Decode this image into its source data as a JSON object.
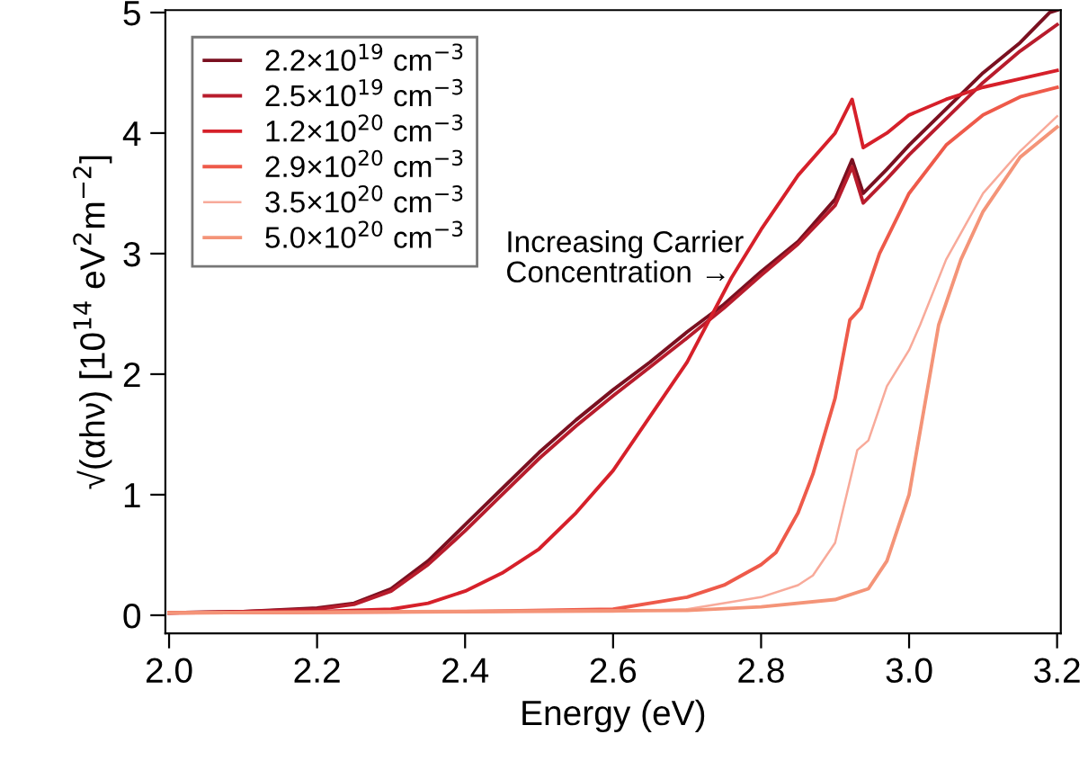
{
  "chart_data": {
    "type": "line",
    "xlabel": "Energy (eV)",
    "ylabel": "√(αhν) [10$^{14}$ eV$^{2}$m$^{−2}$]",
    "xlim": [
      1.995,
      3.205
    ],
    "ylim": [
      -0.15,
      5.02
    ],
    "xticks": [
      {
        "value": 2.0,
        "label": "2.0"
      },
      {
        "value": 2.2,
        "label": "2.2"
      },
      {
        "value": 2.4,
        "label": "2.4"
      },
      {
        "value": 2.6,
        "label": "2.6"
      },
      {
        "value": 2.8,
        "label": "2.8"
      },
      {
        "value": 3.0,
        "label": "3.0"
      },
      {
        "value": 3.2,
        "label": "3.2"
      }
    ],
    "yticks": [
      0,
      1,
      2,
      3,
      4,
      5
    ],
    "grid": false,
    "legend": "top left",
    "line_style": "solid",
    "marker": "none",
    "annotations": [
      "Increasing Carrier\nConcentration →"
    ],
    "series": [
      {
        "name": "2.2×10$^{19}$ cm$^{−3}$",
        "color": "#7a1020",
        "x": [
          2.0,
          2.1,
          2.2,
          2.25,
          2.3,
          2.35,
          2.4,
          2.45,
          2.5,
          2.55,
          2.6,
          2.65,
          2.7,
          2.75,
          2.8,
          2.85,
          2.9,
          2.923,
          2.938,
          2.97,
          3.0,
          3.05,
          3.1,
          3.15,
          3.19,
          3.2
        ],
        "values": [
          0.02,
          0.03,
          0.06,
          0.1,
          0.22,
          0.45,
          0.75,
          1.05,
          1.35,
          1.62,
          1.87,
          2.1,
          2.35,
          2.58,
          2.85,
          3.1,
          3.45,
          3.78,
          3.5,
          3.7,
          3.9,
          4.2,
          4.5,
          4.75,
          5.0,
          5.02
        ]
      },
      {
        "name": "2.5×10$^{19}$ cm$^{−3}$",
        "color": "#b81c2c",
        "x": [
          2.0,
          2.1,
          2.2,
          2.25,
          2.3,
          2.35,
          2.4,
          2.45,
          2.5,
          2.55,
          2.6,
          2.65,
          2.7,
          2.75,
          2.8,
          2.85,
          2.9,
          2.923,
          2.938,
          2.97,
          3.0,
          3.05,
          3.1,
          3.15,
          3.2
        ],
        "values": [
          0.02,
          0.03,
          0.05,
          0.09,
          0.2,
          0.42,
          0.7,
          1.0,
          1.3,
          1.57,
          1.82,
          2.06,
          2.3,
          2.55,
          2.82,
          3.08,
          3.4,
          3.72,
          3.42,
          3.62,
          3.82,
          4.12,
          4.42,
          4.68,
          4.9
        ]
      },
      {
        "name": "1.2×10$^{20}$ cm$^{−3}$",
        "color": "#d6202a",
        "x": [
          2.0,
          2.2,
          2.3,
          2.35,
          2.4,
          2.45,
          2.5,
          2.55,
          2.6,
          2.65,
          2.7,
          2.76,
          2.8,
          2.85,
          2.9,
          2.923,
          2.938,
          2.97,
          3.0,
          3.05,
          3.1,
          3.15,
          3.2
        ],
        "values": [
          0.02,
          0.03,
          0.05,
          0.1,
          0.2,
          0.35,
          0.55,
          0.85,
          1.2,
          1.65,
          2.1,
          2.8,
          3.2,
          3.65,
          4.0,
          4.28,
          3.88,
          4.0,
          4.15,
          4.28,
          4.38,
          4.45,
          4.52
        ]
      },
      {
        "name": "2.9×10$^{20}$ cm$^{−3}$",
        "color": "#ee5a4a",
        "x": [
          2.0,
          2.4,
          2.6,
          2.7,
          2.75,
          2.8,
          2.82,
          2.85,
          2.87,
          2.9,
          2.92,
          2.935,
          2.96,
          3.0,
          3.05,
          3.1,
          3.15,
          3.2
        ],
        "values": [
          0.02,
          0.03,
          0.05,
          0.15,
          0.25,
          0.42,
          0.52,
          0.85,
          1.17,
          1.8,
          2.45,
          2.55,
          3.0,
          3.5,
          3.9,
          4.15,
          4.3,
          4.38
        ]
      },
      {
        "name": "3.5×10$^{20}$ cm$^{−3}$",
        "color": "#f8aa9a",
        "x": [
          2.0,
          2.6,
          2.7,
          2.8,
          2.85,
          2.87,
          2.9,
          2.93,
          2.945,
          2.97,
          3.0,
          3.015,
          3.05,
          3.1,
          3.15,
          3.2
        ],
        "values": [
          0.02,
          0.03,
          0.05,
          0.15,
          0.25,
          0.33,
          0.6,
          1.37,
          1.45,
          1.9,
          2.2,
          2.41,
          2.95,
          3.5,
          3.85,
          4.14
        ]
      },
      {
        "name": "5.0×10$^{20}$ cm$^{−3}$",
        "color": "#f49478",
        "x": [
          2.0,
          2.7,
          2.8,
          2.9,
          2.945,
          2.97,
          3.0,
          3.04,
          3.07,
          3.1,
          3.15,
          3.2
        ],
        "values": [
          0.02,
          0.04,
          0.07,
          0.13,
          0.22,
          0.45,
          1.0,
          2.41,
          2.95,
          3.35,
          3.8,
          4.05
        ]
      }
    ]
  }
}
